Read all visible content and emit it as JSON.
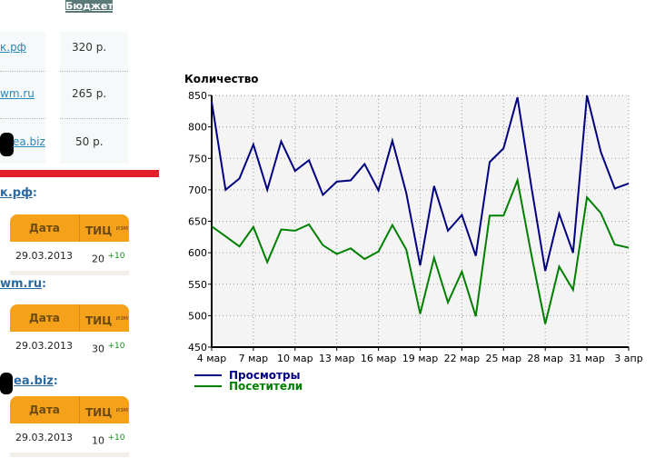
{
  "budget_table": {
    "header": "Бюджет",
    "rows": [
      {
        "site": "к.рф",
        "budget": "320 р."
      },
      {
        "site": "wm.ru",
        "budget": "265 р."
      },
      {
        "site": "ea.biz",
        "budget": "50 р."
      }
    ]
  },
  "tic_sections": [
    {
      "site": "к.рф",
      "col_date": "Дата",
      "col_tic": "ТИЦ",
      "col_change": "изм.",
      "date": "29.03.2013",
      "tic": "20",
      "change": "+10"
    },
    {
      "site": "wm.ru",
      "col_date": "Дата",
      "col_tic": "ТИЦ",
      "col_change": "изм.",
      "date": "29.03.2013",
      "tic": "30",
      "change": "+10"
    },
    {
      "site": "ea.biz",
      "col_date": "Дата",
      "col_tic": "ТИЦ",
      "col_change": "изм.",
      "date": "29.03.2013",
      "tic": "10",
      "change": "+10"
    }
  ],
  "chart_data": {
    "type": "line",
    "ylabel": "Количество",
    "ylim": [
      450,
      850
    ],
    "yticks": [
      450,
      500,
      550,
      600,
      650,
      700,
      750,
      800,
      850
    ],
    "x": [
      "4 мар",
      "5 мар",
      "6 мар",
      "7 мар",
      "8 мар",
      "9 мар",
      "10 мар",
      "11 мар",
      "12 мар",
      "13 мар",
      "14 мар",
      "15 мар",
      "16 мар",
      "17 мар",
      "18 мар",
      "19 мар",
      "20 мар",
      "21 мар",
      "22 мар",
      "23 мар",
      "24 мар",
      "25 мар",
      "26 мар",
      "27 мар",
      "28 мар",
      "29 мар",
      "30 мар",
      "31 мар",
      "1 апр",
      "2 апр",
      "3 апр"
    ],
    "xtick_labels": [
      "4 мар",
      "7 мар",
      "10 мар",
      "13 мар",
      "16 мар",
      "19 мар",
      "22 мар",
      "25 мар",
      "28 мар",
      "31 мар",
      "3 апр"
    ],
    "grid": true,
    "legend": "bottom-left",
    "series": [
      {
        "name": "Просмотры",
        "color": "#000080",
        "values": [
          840,
          700,
          718,
          772,
          700,
          777,
          730,
          747,
          692,
          713,
          715,
          741,
          699,
          778,
          695,
          580,
          706,
          635,
          660,
          595,
          744,
          766,
          847,
          705,
          571,
          662,
          600,
          850,
          760,
          702,
          710
        ]
      },
      {
        "name": "Посетители",
        "color": "#008000",
        "values": [
          642,
          626,
          610,
          641,
          585,
          637,
          635,
          645,
          612,
          598,
          607,
          590,
          602,
          644,
          605,
          503,
          592,
          521,
          570,
          499,
          659,
          659,
          715,
          597,
          487,
          578,
          541,
          688,
          663,
          613,
          608
        ]
      }
    ]
  }
}
